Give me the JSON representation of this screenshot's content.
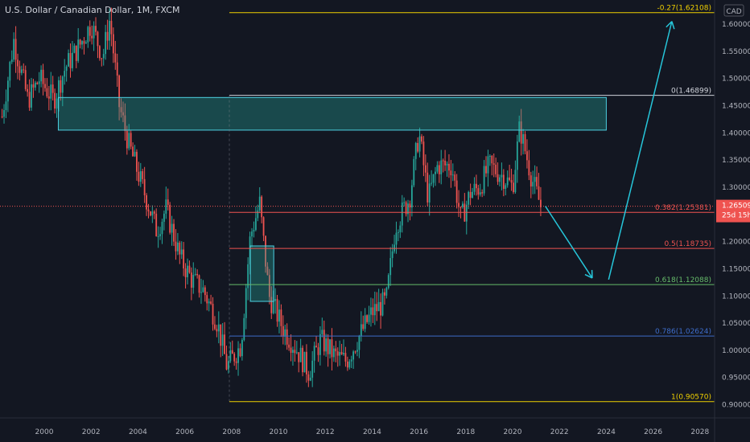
{
  "header": {
    "symbol_title": "U.S. Dollar / Canadian Dollar, 1M, FXCM"
  },
  "currency_button": "CAD",
  "colors": {
    "background": "#131722",
    "up": "#26a69a",
    "down": "#ef5350",
    "text": "#b2b5be",
    "zone_fill": "rgba(38,166,154,0.35)",
    "zone_border": "#4dd0e1",
    "arrow": "#26c6da",
    "price_line": "#ef5350",
    "price_label_bg": "#ef5350"
  },
  "current_price": {
    "label": "1.26509",
    "countdown": "25d 15h",
    "value": 1.26509
  },
  "chart_data": {
    "type": "candlestick",
    "x_axis": {
      "ticks": [
        "2000",
        "2002",
        "2004",
        "2006",
        "2008",
        "2010",
        "2012",
        "2014",
        "2016",
        "2018",
        "2020",
        "2022",
        "2024",
        "2026",
        "2028"
      ]
    },
    "y_axis": {
      "ticks": [
        "1.60000",
        "1.55000",
        "1.50000",
        "1.45000",
        "1.40000",
        "1.35000",
        "1.30000",
        "1.25000",
        "1.20000",
        "1.15000",
        "1.10000",
        "1.05000",
        "1.00000",
        "0.95000",
        "0.90000"
      ],
      "range": [
        0.88,
        1.64
      ]
    },
    "fib_levels": [
      {
        "label": "-0.27(1.62108)",
        "value": 1.62108,
        "color": "#f0d000"
      },
      {
        "label": "0(1.46899)",
        "value": 1.46899,
        "color": "#d1d4dc"
      },
      {
        "label": "0.382(1.25381)",
        "value": 1.25381,
        "color": "#ef5350"
      },
      {
        "label": "0.5(1.18735)",
        "value": 1.18735,
        "color": "#ef5350"
      },
      {
        "label": "0.618(1.12088)",
        "value": 1.12088,
        "color": "#66bb6a"
      },
      {
        "label": "0.786(1.02624)",
        "value": 1.02624,
        "color": "#3d6cc9"
      },
      {
        "label": "1(0.90570)",
        "value": 0.9057,
        "color": "#f0d000"
      }
    ],
    "zones": [
      {
        "x_from": 2000.6,
        "x_to": 2024.0,
        "y_from": 1.405,
        "y_to": 1.465
      },
      {
        "x_from": 2008.8,
        "x_to": 2009.8,
        "y_from": 1.09,
        "y_to": 1.192
      }
    ],
    "projection_path": [
      [
        2021.4,
        1.265
      ],
      [
        2023.4,
        1.133
      ],
      [
        2024.1,
        1.13
      ],
      [
        2026.8,
        1.605
      ]
    ],
    "price_path": [
      [
        1998.2,
        1.43
      ],
      [
        1998.7,
        1.57
      ],
      [
        1999.3,
        1.46
      ],
      [
        1999.8,
        1.5
      ],
      [
        2000.4,
        1.46
      ],
      [
        2000.9,
        1.52
      ],
      [
        2001.5,
        1.56
      ],
      [
        2002.0,
        1.6
      ],
      [
        2002.5,
        1.54
      ],
      [
        2002.8,
        1.61
      ],
      [
        2003.2,
        1.45
      ],
      [
        2003.6,
        1.38
      ],
      [
        2004.2,
        1.3
      ],
      [
        2004.8,
        1.22
      ],
      [
        2005.2,
        1.26
      ],
      [
        2005.8,
        1.17
      ],
      [
        2006.3,
        1.13
      ],
      [
        2006.8,
        1.11
      ],
      [
        2007.4,
        1.05
      ],
      [
        2007.8,
        0.97
      ],
      [
        2008.4,
        1.01
      ],
      [
        2008.8,
        1.21
      ],
      [
        2009.2,
        1.27
      ],
      [
        2009.6,
        1.1
      ],
      [
        2010.2,
        1.04
      ],
      [
        2010.8,
        1.0
      ],
      [
        2011.3,
        0.96
      ],
      [
        2011.8,
        1.02
      ],
      [
        2012.4,
        0.99
      ],
      [
        2012.9,
        0.98
      ],
      [
        2013.5,
        1.03
      ],
      [
        2014.0,
        1.07
      ],
      [
        2014.6,
        1.09
      ],
      [
        2015.0,
        1.23
      ],
      [
        2015.6,
        1.28
      ],
      [
        2016.0,
        1.4
      ],
      [
        2016.4,
        1.28
      ],
      [
        2016.8,
        1.34
      ],
      [
        2017.4,
        1.34
      ],
      [
        2017.8,
        1.24
      ],
      [
        2018.2,
        1.29
      ],
      [
        2018.6,
        1.3
      ],
      [
        2019.0,
        1.34
      ],
      [
        2019.6,
        1.32
      ],
      [
        2020.0,
        1.3
      ],
      [
        2020.3,
        1.41
      ],
      [
        2020.8,
        1.32
      ],
      [
        2021.2,
        1.265
      ]
    ]
  }
}
